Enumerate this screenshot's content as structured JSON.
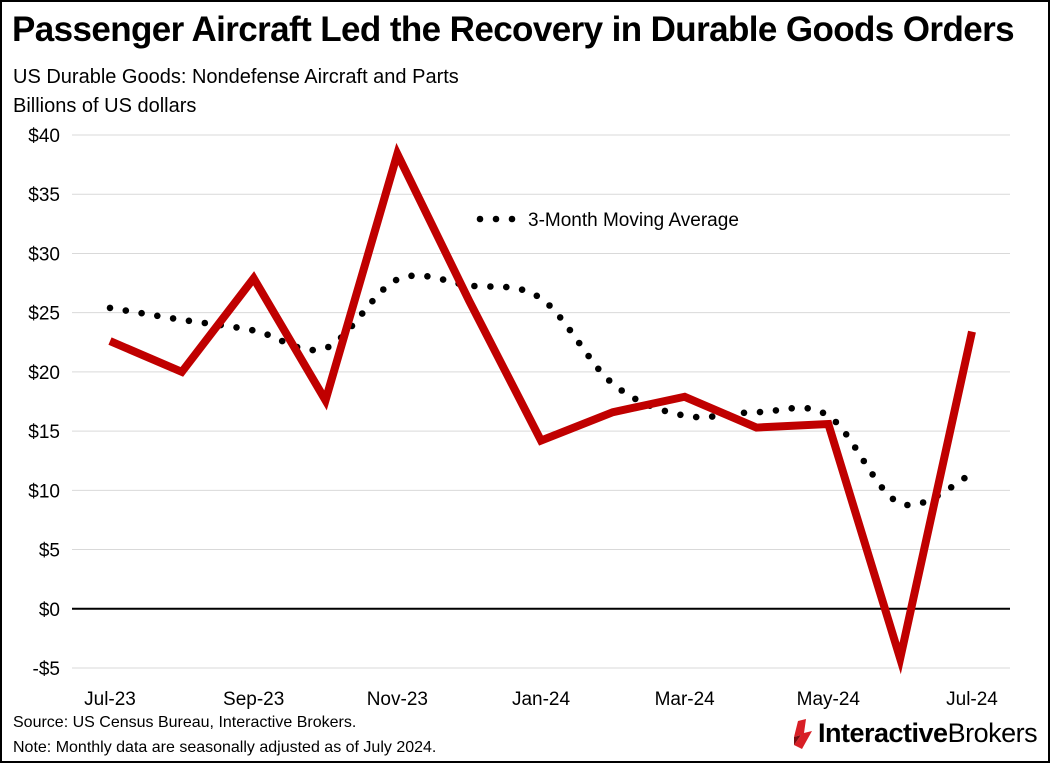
{
  "title": "Passenger Aircraft Led the Recovery in Durable Goods Orders",
  "subtitle": "US Durable Goods: Nondefense Aircraft and Parts",
  "units": "Billions of US dollars",
  "footer": {
    "source": "Source: US Census Bureau, Interactive Brokers.",
    "note": "Note: Monthly data are seasonally adjusted as of July 2024."
  },
  "logo": {
    "part1": "Interactive",
    "part2": "Brokers",
    "mark_icon": "interactive-brokers-logo-icon"
  },
  "colors": {
    "primary_line": "#c00000",
    "moving_average": "#000000",
    "gridline": "#d9d9d9",
    "zero_line": "#000000"
  },
  "chart_data": {
    "type": "line",
    "title": "Passenger Aircraft Led the Recovery in Durable Goods Orders",
    "xlabel": "",
    "ylabel": "Billions of US dollars",
    "ylim": [
      -5,
      40
    ],
    "y_ticks": [
      40,
      35,
      30,
      25,
      20,
      15,
      10,
      5,
      0,
      -5
    ],
    "y_tick_labels": [
      "$40",
      "$35",
      "$30",
      "$25",
      "$20",
      "$15",
      "$10",
      "$5",
      "$0",
      "-$5"
    ],
    "x": [
      "Jul-23",
      "Aug-23",
      "Sep-23",
      "Oct-23",
      "Nov-23",
      "Dec-23",
      "Jan-24",
      "Feb-24",
      "Mar-24",
      "Apr-24",
      "May-24",
      "Jun-24",
      "Jul-24"
    ],
    "x_tick_labels": [
      "Jul-23",
      "Sep-23",
      "Nov-23",
      "Jan-24",
      "Mar-24",
      "May-24",
      "Jul-24"
    ],
    "grid": true,
    "series": [
      {
        "name": "Nondefense Aircraft and Parts",
        "style": "solid",
        "values": [
          22.6,
          20.0,
          27.9,
          17.6,
          38.4,
          26.0,
          14.2,
          16.6,
          17.9,
          15.3,
          15.6,
          -4.2,
          23.4
        ]
      },
      {
        "name": "3-Month Moving Average",
        "style": "dotted",
        "values": [
          25.4,
          24.4,
          23.5,
          22.0,
          27.8,
          27.3,
          26.2,
          19.0,
          16.3,
          16.6,
          16.3,
          8.9,
          11.4
        ]
      }
    ],
    "legend": [
      {
        "label": "3-Month Moving Average",
        "series": "3-Month Moving Average"
      }
    ]
  }
}
